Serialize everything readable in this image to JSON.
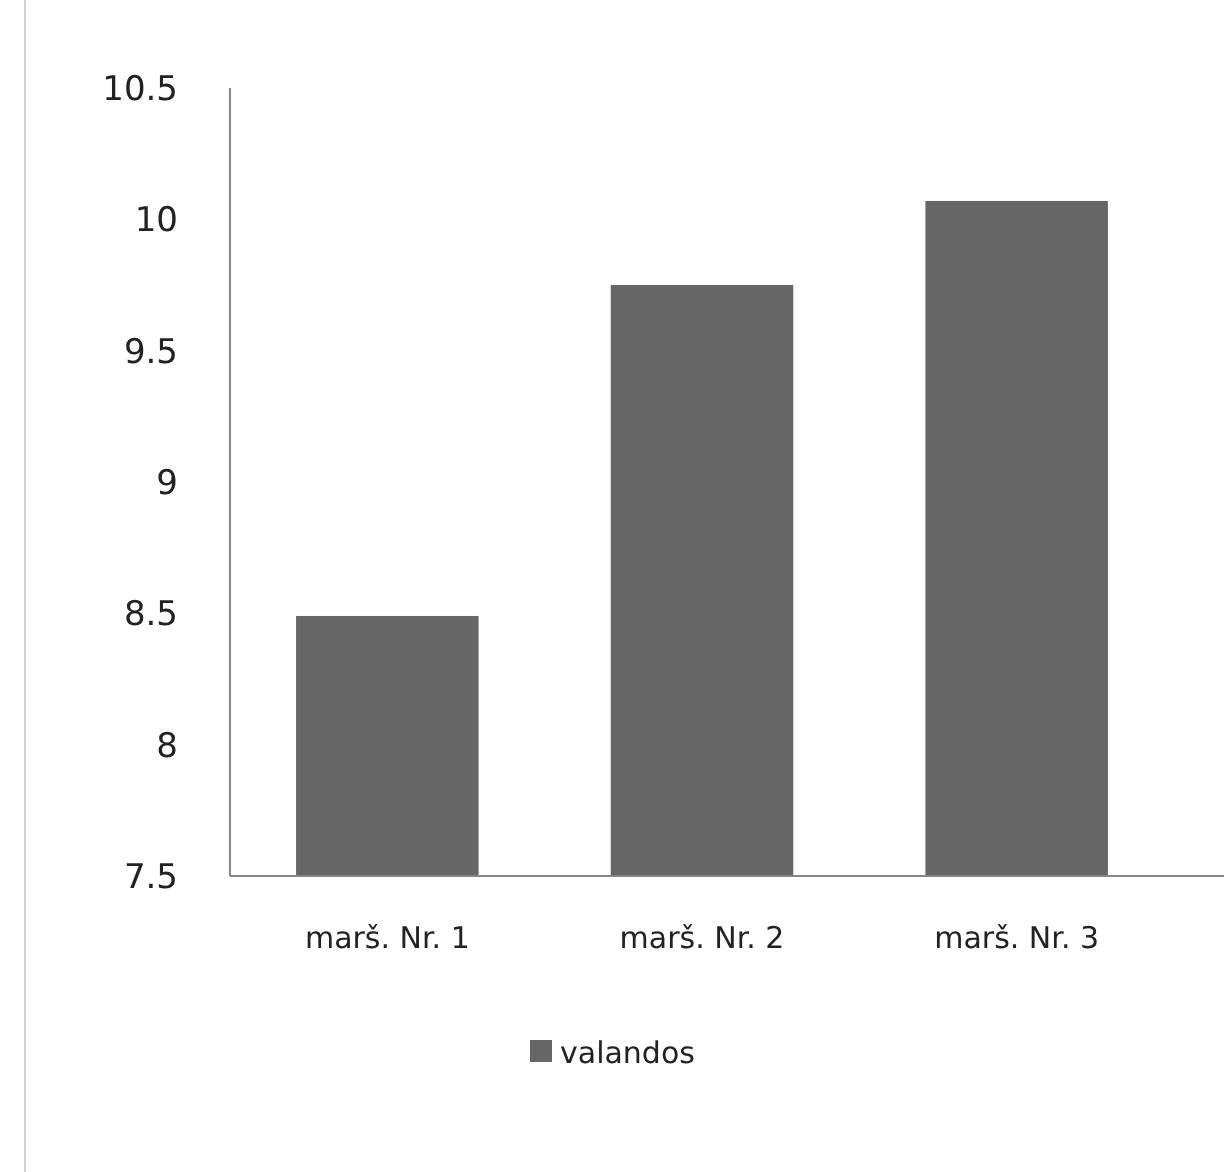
{
  "chart_data": {
    "type": "bar",
    "categories": [
      "marš. Nr. 1",
      "marš. Nr. 2",
      "marš. Nr. 3"
    ],
    "series": [
      {
        "name": "valandos",
        "color": "#666666",
        "values": [
          8.49,
          9.75,
          10.07
        ]
      }
    ],
    "ylim": [
      7.5,
      10.5
    ],
    "yticks": [
      7.5,
      8,
      8.5,
      9,
      9.5,
      10,
      10.5
    ],
    "grid": false,
    "legend": "bottom"
  }
}
